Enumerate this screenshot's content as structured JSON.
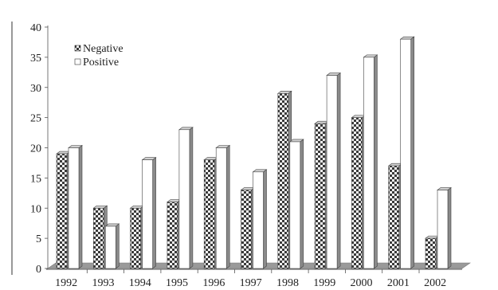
{
  "chart_data": {
    "type": "bar",
    "categories": [
      "1992",
      "1993",
      "1994",
      "1995",
      "1996",
      "1997",
      "1998",
      "1999",
      "2000",
      "2001",
      "2002"
    ],
    "series": [
      {
        "name": "Negative",
        "values": [
          19,
          10,
          10,
          11,
          18,
          13,
          29,
          24,
          25,
          17,
          5
        ]
      },
      {
        "name": "Positive",
        "values": [
          20,
          7,
          18,
          23,
          20,
          16,
          21,
          32,
          35,
          38,
          13
        ]
      }
    ],
    "ylim": [
      0,
      40
    ],
    "yticks": [
      0,
      5,
      10,
      15,
      20,
      25,
      30,
      35,
      40
    ],
    "grid": false,
    "legend": "top-left",
    "style": "3d",
    "colors": {
      "negative_pattern": "#3a3a3a",
      "positive_fill": "#ffffff",
      "side": "#8a8a8a",
      "top": "#d0d0d0",
      "axis": "#555555"
    }
  }
}
